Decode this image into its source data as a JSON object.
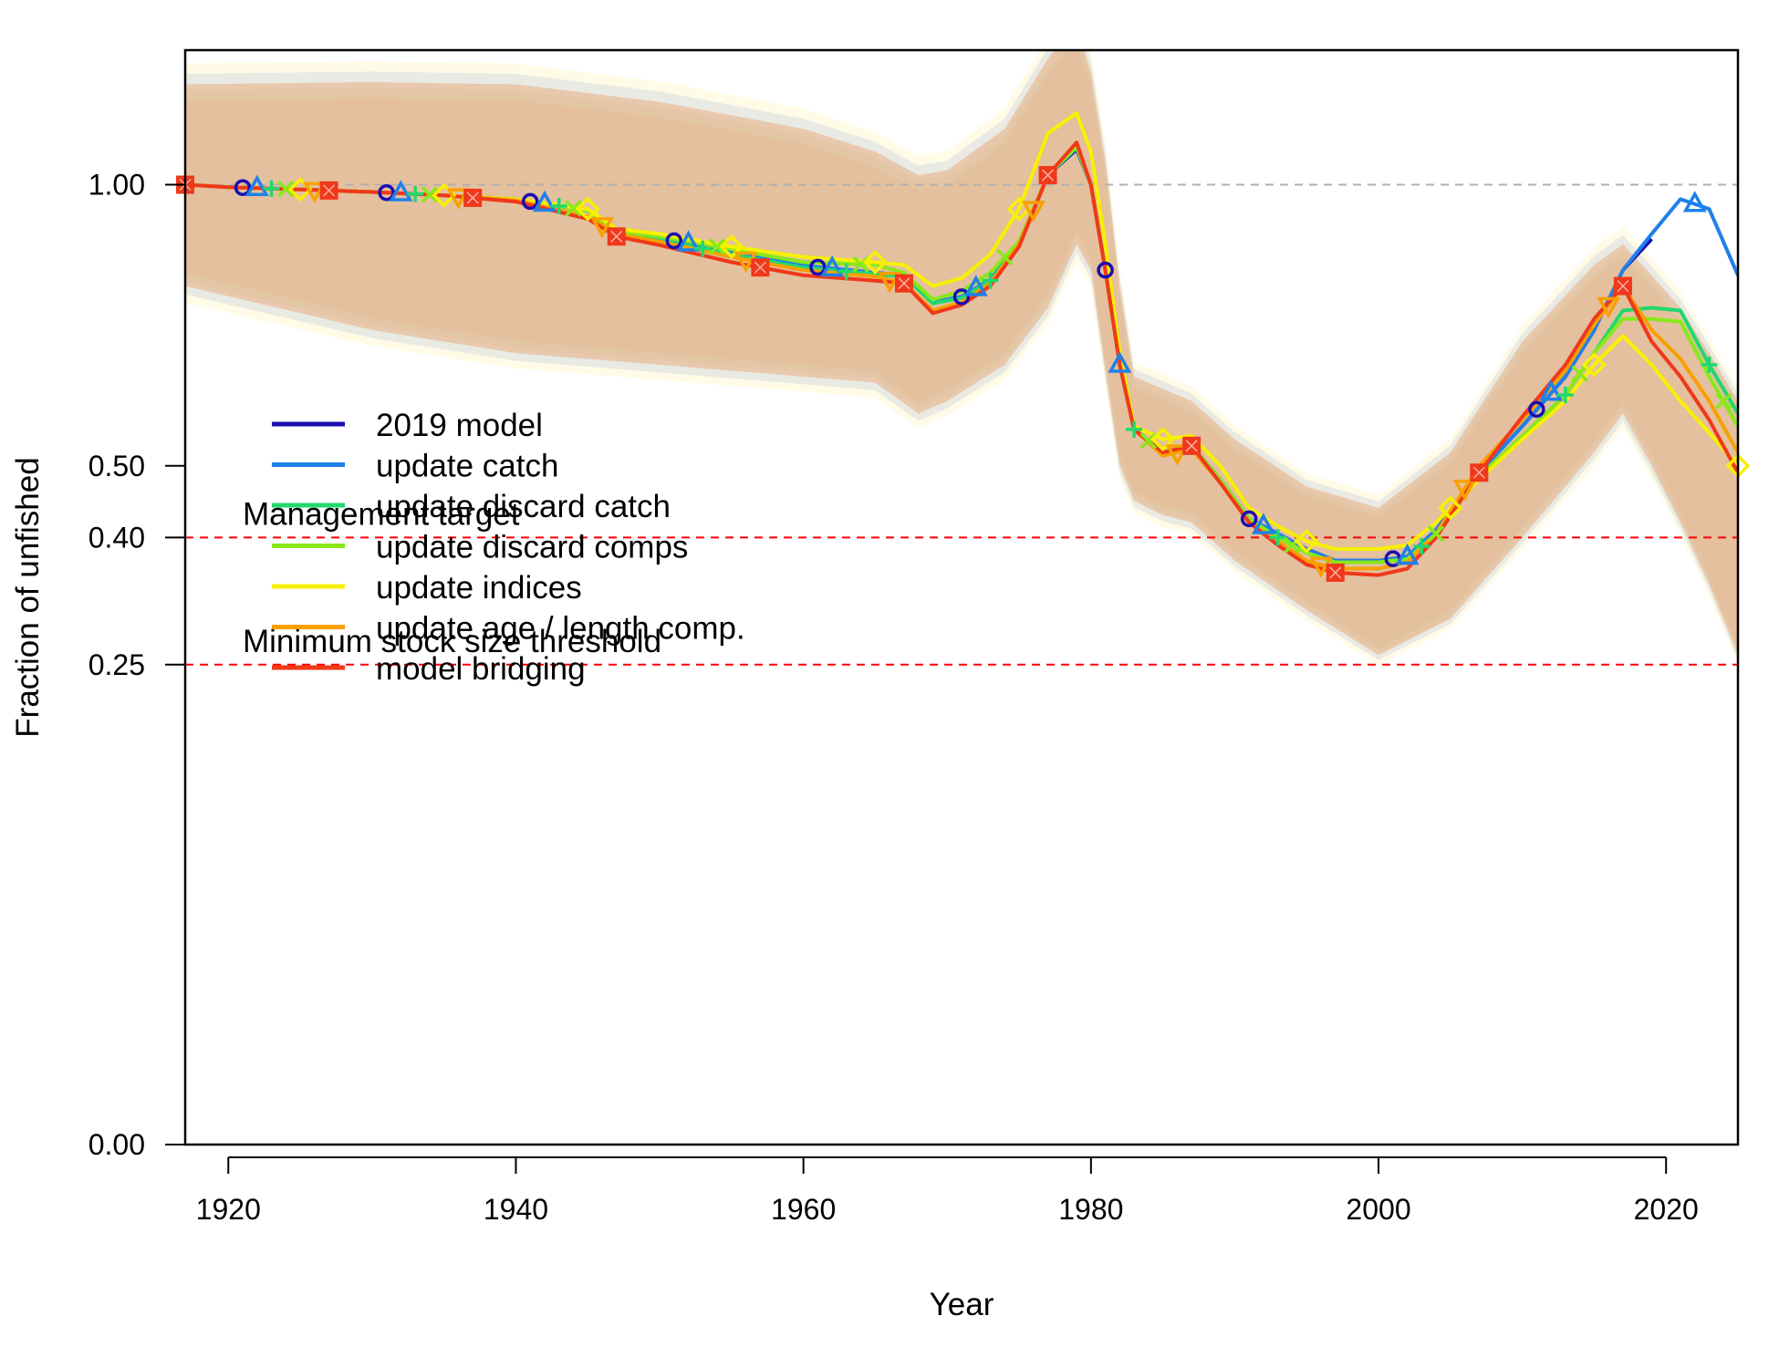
{
  "chart_data": {
    "type": "line",
    "title": "",
    "xlabel": "Year",
    "ylabel": "Fraction of unfished",
    "xlim": [
      1917,
      2025
    ],
    "ylim": [
      0,
      1.3
    ],
    "y_scale": "sqrt",
    "x_ticks": [
      1920,
      1940,
      1960,
      1980,
      2000,
      2020
    ],
    "x_tick_labels": [
      "1920",
      "1940",
      "1960",
      "1980",
      "2000",
      "2020"
    ],
    "y_ticks": [
      0,
      0.25,
      0.4,
      0.5,
      1.0
    ],
    "y_tick_labels": [
      "0.00",
      "0.25",
      "0.40",
      "0.50",
      "1.00"
    ],
    "legend_position": "top-left",
    "reference_lines": [
      {
        "y": 1.0,
        "color": "#b0b0b0",
        "style": "dashed",
        "label": ""
      },
      {
        "y": 0.4,
        "color": "#ff0000",
        "style": "dashed",
        "label": "Management target"
      },
      {
        "y": 0.25,
        "color": "#ff0000",
        "style": "dashed",
        "label": "Minimum stock size threshold"
      }
    ],
    "series": [
      {
        "name": "2019 model",
        "color": "#1a0db0",
        "marker": "circle",
        "band_color": "#8a8ae6",
        "x": [
          1917,
          1920,
          1925,
          1930,
          1935,
          1940,
          1945,
          1947,
          1950,
          1955,
          1960,
          1965,
          1967,
          1969,
          1971,
          1973,
          1975,
          1977,
          1979,
          1980,
          1981,
          1982,
          1983,
          1985,
          1987,
          1989,
          1991,
          1993,
          1995,
          1997,
          2000,
          2002,
          2004,
          2007,
          2010,
          2013,
          2015,
          2017,
          2019
        ],
        "y": [
          1.0,
          0.995,
          0.99,
          0.985,
          0.978,
          0.97,
          0.947,
          0.905,
          0.892,
          0.865,
          0.838,
          0.825,
          0.82,
          0.77,
          0.78,
          0.812,
          0.88,
          1.02,
          1.075,
          1.0,
          0.83,
          0.66,
          0.555,
          0.52,
          0.53,
          0.48,
          0.425,
          0.405,
          0.385,
          0.37,
          0.37,
          0.375,
          0.41,
          0.49,
          0.56,
          0.64,
          0.72,
          0.83,
          0.89
        ]
      },
      {
        "name": "update catch",
        "color": "#1f80e8",
        "marker": "triangle",
        "band_color": "#a0b4f0",
        "x": [
          1917,
          1920,
          1925,
          1930,
          1935,
          1940,
          1945,
          1947,
          1950,
          1955,
          1960,
          1965,
          1967,
          1969,
          1971,
          1973,
          1975,
          1977,
          1979,
          1980,
          1981,
          1982,
          1983,
          1985,
          1987,
          1989,
          1991,
          1993,
          1995,
          1997,
          2000,
          2002,
          2004,
          2007,
          2010,
          2013,
          2015,
          2017,
          2019,
          2021,
          2023,
          2025
        ],
        "y": [
          1.0,
          0.995,
          0.99,
          0.985,
          0.978,
          0.97,
          0.947,
          0.905,
          0.892,
          0.865,
          0.838,
          0.825,
          0.82,
          0.77,
          0.78,
          0.812,
          0.88,
          1.02,
          1.078,
          1.0,
          0.83,
          0.66,
          0.555,
          0.52,
          0.53,
          0.48,
          0.425,
          0.405,
          0.385,
          0.37,
          0.37,
          0.375,
          0.41,
          0.49,
          0.56,
          0.64,
          0.72,
          0.83,
          0.9,
          0.97,
          0.95,
          0.82
        ]
      },
      {
        "name": "update discard catch",
        "color": "#22d86e",
        "marker": "plus",
        "band_color": "#b0c8a8",
        "x": [
          1917,
          1920,
          1925,
          1930,
          1935,
          1940,
          1945,
          1947,
          1950,
          1955,
          1960,
          1965,
          1967,
          1969,
          1971,
          1973,
          1975,
          1977,
          1979,
          1980,
          1981,
          1982,
          1983,
          1985,
          1987,
          1989,
          1991,
          1993,
          1995,
          1997,
          2000,
          2002,
          2004,
          2007,
          2010,
          2013,
          2015,
          2017,
          2019,
          2021,
          2023,
          2025
        ],
        "y": [
          1.0,
          0.995,
          0.99,
          0.985,
          0.978,
          0.97,
          0.947,
          0.902,
          0.888,
          0.86,
          0.835,
          0.822,
          0.818,
          0.768,
          0.778,
          0.81,
          0.88,
          1.02,
          1.085,
          1.0,
          0.83,
          0.66,
          0.555,
          0.52,
          0.53,
          0.48,
          0.425,
          0.4,
          0.38,
          0.368,
          0.368,
          0.372,
          0.405,
          0.485,
          0.545,
          0.61,
          0.68,
          0.755,
          0.76,
          0.755,
          0.66,
          0.58
        ]
      },
      {
        "name": "update discard comps",
        "color": "#88e81a",
        "marker": "x",
        "band_color": "#c8d8a0",
        "x": [
          1917,
          1920,
          1925,
          1930,
          1935,
          1940,
          1945,
          1947,
          1950,
          1955,
          1960,
          1965,
          1967,
          1969,
          1971,
          1973,
          1975,
          1977,
          1979,
          1980,
          1981,
          1982,
          1983,
          1985,
          1987,
          1989,
          1991,
          1993,
          1995,
          1997,
          2000,
          2002,
          2004,
          2007,
          2010,
          2013,
          2015,
          2017,
          2019,
          2021,
          2023,
          2025
        ],
        "y": [
          1.0,
          0.995,
          0.99,
          0.985,
          0.978,
          0.97,
          0.947,
          0.905,
          0.895,
          0.87,
          0.845,
          0.84,
          0.825,
          0.775,
          0.79,
          0.825,
          0.885,
          1.02,
          1.08,
          1.0,
          0.83,
          0.66,
          0.555,
          0.52,
          0.53,
          0.48,
          0.425,
          0.4,
          0.38,
          0.368,
          0.368,
          0.372,
          0.405,
          0.485,
          0.545,
          0.61,
          0.68,
          0.74,
          0.74,
          0.735,
          0.64,
          0.56
        ]
      },
      {
        "name": "update indices",
        "color": "#f8f000",
        "marker": "diamond",
        "band_color": "#fff4b8",
        "x": [
          1917,
          1920,
          1925,
          1930,
          1935,
          1940,
          1945,
          1947,
          1950,
          1955,
          1960,
          1965,
          1967,
          1969,
          1971,
          1973,
          1975,
          1977,
          1979,
          1980,
          1981,
          1982,
          1983,
          1985,
          1987,
          1989,
          1991,
          1993,
          1995,
          1997,
          2000,
          2002,
          2004,
          2007,
          2010,
          2013,
          2015,
          2017,
          2019,
          2021,
          2023,
          2025
        ],
        "y": [
          1.0,
          0.995,
          0.99,
          0.985,
          0.978,
          0.97,
          0.95,
          0.91,
          0.9,
          0.875,
          0.855,
          0.845,
          0.84,
          0.8,
          0.815,
          0.86,
          0.95,
          1.11,
          1.155,
          1.07,
          0.88,
          0.68,
          0.56,
          0.54,
          0.545,
          0.5,
          0.44,
          0.415,
          0.395,
          0.385,
          0.385,
          0.39,
          0.42,
          0.48,
          0.54,
          0.6,
          0.66,
          0.71,
          0.66,
          0.6,
          0.55,
          0.5
        ]
      },
      {
        "name": "update age / length comp.",
        "color": "#f8a000",
        "marker": "triangle-down",
        "band_color": "#f8c89a",
        "x": [
          1917,
          1920,
          1925,
          1930,
          1935,
          1940,
          1945,
          1947,
          1950,
          1955,
          1960,
          1965,
          1967,
          1969,
          1971,
          1973,
          1975,
          1977,
          1979,
          1980,
          1981,
          1982,
          1983,
          1985,
          1987,
          1989,
          1991,
          1993,
          1995,
          1997,
          2000,
          2002,
          2004,
          2007,
          2010,
          2013,
          2015,
          2017,
          2019,
          2021,
          2023,
          2025
        ],
        "y": [
          1.0,
          0.995,
          0.99,
          0.985,
          0.978,
          0.968,
          0.935,
          0.9,
          0.885,
          0.855,
          0.83,
          0.818,
          0.805,
          0.755,
          0.77,
          0.805,
          0.88,
          1.02,
          1.09,
          1.0,
          0.83,
          0.66,
          0.555,
          0.515,
          0.525,
          0.475,
          0.42,
          0.395,
          0.37,
          0.36,
          0.36,
          0.368,
          0.405,
          0.5,
          0.57,
          0.65,
          0.73,
          0.8,
          0.72,
          0.67,
          0.6,
          0.52
        ]
      },
      {
        "name": "model bridging",
        "color": "#f0381a",
        "marker": "square",
        "band_color": "#e8b090",
        "x": [
          1917,
          1920,
          1925,
          1930,
          1935,
          1940,
          1945,
          1947,
          1950,
          1955,
          1960,
          1965,
          1967,
          1969,
          1971,
          1973,
          1975,
          1977,
          1979,
          1980,
          1981,
          1982,
          1983,
          1985,
          1987,
          1989,
          1991,
          1993,
          1995,
          1997,
          2000,
          2002,
          2004,
          2007,
          2010,
          2013,
          2015,
          2017,
          2019,
          2021,
          2023,
          2025
        ],
        "y": [
          1.0,
          0.995,
          0.99,
          0.985,
          0.978,
          0.965,
          0.93,
          0.895,
          0.878,
          0.845,
          0.82,
          0.81,
          0.805,
          0.75,
          0.765,
          0.8,
          0.875,
          1.02,
          1.09,
          1.0,
          0.83,
          0.66,
          0.555,
          0.52,
          0.53,
          0.475,
          0.42,
          0.39,
          0.365,
          0.355,
          0.352,
          0.36,
          0.4,
          0.49,
          0.575,
          0.66,
          0.74,
          0.8,
          0.7,
          0.64,
          0.57,
          0.49
        ]
      }
    ],
    "uncertainty_band": {
      "x": [
        1917,
        1930,
        1940,
        1950,
        1960,
        1965,
        1968,
        1970,
        1974,
        1977,
        1979,
        1980,
        1981,
        1982,
        1983,
        1985,
        1987,
        1990,
        1995,
        2000,
        2005,
        2010,
        2015,
        2017,
        2019,
        2021,
        2023,
        2025
      ],
      "upper": [
        1.22,
        1.225,
        1.22,
        1.18,
        1.12,
        1.07,
        1.02,
        1.03,
        1.12,
        1.28,
        1.36,
        1.25,
        1.05,
        0.8,
        0.64,
        0.62,
        0.6,
        0.54,
        0.47,
        0.44,
        0.52,
        0.7,
        0.84,
        0.88,
        0.82,
        0.76,
        0.68,
        0.6
      ],
      "lower": [
        0.8,
        0.72,
        0.68,
        0.66,
        0.64,
        0.63,
        0.58,
        0.6,
        0.66,
        0.76,
        0.88,
        0.83,
        0.65,
        0.5,
        0.45,
        0.43,
        0.42,
        0.37,
        0.31,
        0.26,
        0.3,
        0.4,
        0.52,
        0.58,
        0.5,
        0.42,
        0.34,
        0.26
      ]
    }
  }
}
